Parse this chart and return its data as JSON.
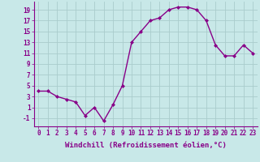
{
  "x": [
    0,
    1,
    2,
    3,
    4,
    5,
    6,
    7,
    8,
    9,
    10,
    11,
    12,
    13,
    14,
    15,
    16,
    17,
    18,
    19,
    20,
    21,
    22,
    23
  ],
  "y": [
    4.0,
    4.0,
    3.0,
    2.5,
    2.0,
    -0.5,
    1.0,
    -1.5,
    1.5,
    5.0,
    13.0,
    15.0,
    17.0,
    17.5,
    19.0,
    19.5,
    19.5,
    19.0,
    17.0,
    12.5,
    10.5,
    10.5,
    12.5,
    11.0
  ],
  "line_color": "#880088",
  "marker": "D",
  "marker_size": 2.0,
  "bg_color": "#c8e8e8",
  "grid_color": "#aacccc",
  "xlabel": "Windchill (Refroidissement éolien,°C)",
  "xlabel_fontsize": 6.5,
  "yticks": [
    -1,
    1,
    3,
    5,
    7,
    9,
    11,
    13,
    15,
    17,
    19
  ],
  "xticks": [
    0,
    1,
    2,
    3,
    4,
    5,
    6,
    7,
    8,
    9,
    10,
    11,
    12,
    13,
    14,
    15,
    16,
    17,
    18,
    19,
    20,
    21,
    22,
    23
  ],
  "ylim": [
    -2.5,
    20.5
  ],
  "xlim": [
    -0.5,
    23.5
  ],
  "tick_fontsize": 5.5,
  "linewidth": 1.0
}
